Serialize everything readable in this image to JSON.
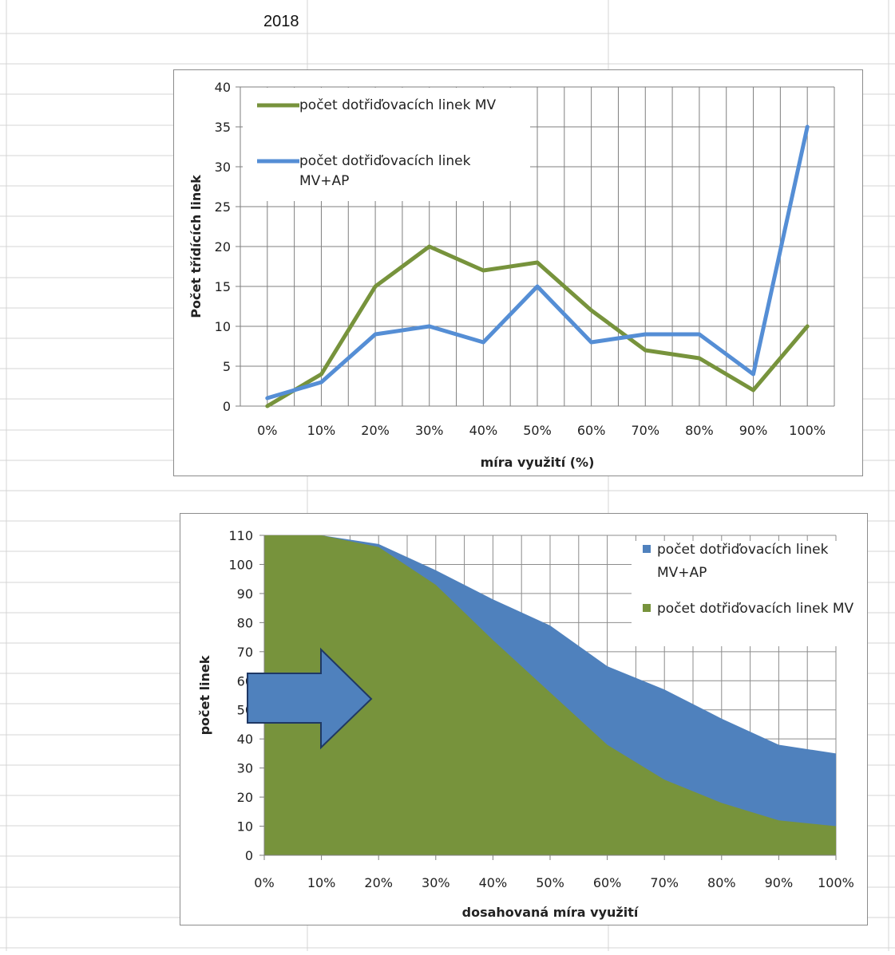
{
  "sheet": {
    "cell_b1": "2018"
  },
  "chart_data": [
    {
      "type": "line",
      "categories": [
        "0%",
        "10%",
        "20%",
        "30%",
        "40%",
        "50%",
        "60%",
        "70%",
        "80%",
        "90%",
        "100%"
      ],
      "series": [
        {
          "name": "počet dotřiďovacích linek MV",
          "color": "#77933c",
          "values": [
            0,
            4,
            15,
            20,
            17,
            18,
            12,
            7,
            6,
            2,
            10
          ]
        },
        {
          "name": "počet dotřiďovacích linek MV+AP",
          "color": "#558ed5",
          "values": [
            1,
            3,
            9,
            10,
            8,
            15,
            8,
            9,
            9,
            4,
            35
          ]
        }
      ],
      "xlabel": "míra využití (%)",
      "ylabel": "Počet třídících linek",
      "ylim": [
        0,
        40
      ],
      "yticks": [
        "0",
        "5",
        "10",
        "15",
        "20",
        "25",
        "30",
        "35",
        "40"
      ],
      "grid": true,
      "legend": "top-left"
    },
    {
      "type": "area",
      "categories": [
        "0%",
        "10%",
        "20%",
        "30%",
        "40%",
        "50%",
        "60%",
        "70%",
        "80%",
        "90%",
        "100%"
      ],
      "series": [
        {
          "name": "počet dotřiďovacích linek MV+AP",
          "color": "#4f81bd",
          "values": [
            110,
            110,
            107,
            98,
            88,
            79,
            65,
            57,
            47,
            38,
            35
          ]
        },
        {
          "name": "počet dotřiďovacích linek MV",
          "color": "#77933c",
          "values": [
            110,
            110,
            106,
            93,
            74,
            56,
            38,
            26,
            18,
            12,
            10
          ]
        }
      ],
      "xlabel": "dosahovaná míra využití",
      "ylabel": "počet linek",
      "ylim": [
        0,
        110
      ],
      "yticks": [
        "0",
        "10",
        "20",
        "30",
        "40",
        "50",
        "60",
        "70",
        "80",
        "90",
        "100",
        "110"
      ],
      "grid": true,
      "legend": "top-right",
      "annotation": "arrow-right",
      "annotation_color": "#4f81bd"
    }
  ]
}
